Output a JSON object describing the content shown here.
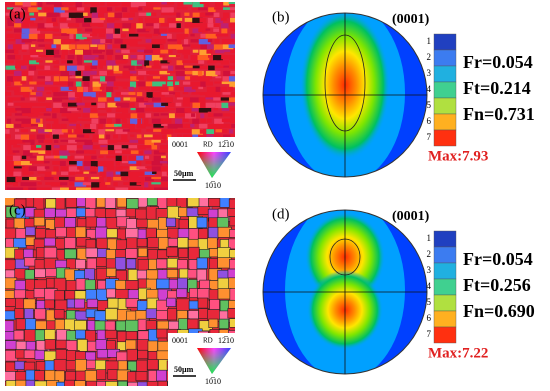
{
  "panels": [
    {
      "label": "(a)",
      "legend": {
        "top_left": "0001",
        "direction": "RD",
        "top_right": "12̅10",
        "bottom": "10̅10",
        "scale": "50µm"
      }
    },
    {
      "label": "(b)",
      "plane": "(0001)",
      "scale_ticks": [
        "1",
        "2",
        "3",
        "4",
        "5",
        "6",
        "7"
      ],
      "fractions": [
        "Fr=0.054",
        "Ft=0.214",
        "Fn=0.731"
      ],
      "max": "Max:7.93"
    },
    {
      "label": "(c)",
      "legend": {
        "top_left": "0001",
        "direction": "RD",
        "top_right": "12̅10",
        "bottom": "10̅10",
        "scale": "50µm"
      }
    },
    {
      "label": "(d)",
      "plane": "(0001)",
      "scale_ticks": [
        "1",
        "2",
        "3",
        "4",
        "5",
        "6",
        "7"
      ],
      "fractions": [
        "Fr=0.054",
        "Ft=0.256",
        "Fn=0.690"
      ],
      "max": "Max:7.22"
    }
  ]
}
